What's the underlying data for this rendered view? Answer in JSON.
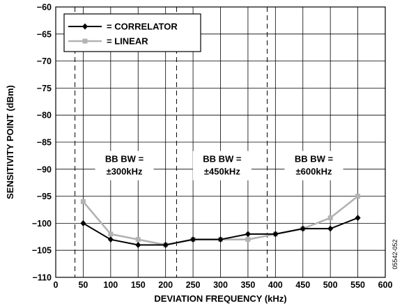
{
  "figure_id": "05542-052",
  "chart_data": {
    "type": "line",
    "title": "",
    "xlabel": "DEVIATION FREQUENCY (kHz)",
    "ylabel": "SENSITIVITY POINT (dBm)",
    "xlim": [
      0,
      600
    ],
    "ylim": [
      -110,
      -60
    ],
    "x_ticks": [
      0,
      50,
      100,
      150,
      200,
      250,
      300,
      350,
      400,
      450,
      500,
      550,
      600
    ],
    "y_ticks": [
      -60,
      -65,
      -70,
      -75,
      -80,
      -85,
      -90,
      -95,
      -100,
      -105,
      -110
    ],
    "grid": true,
    "legend_position": "top-left",
    "series": [
      {
        "name": "= CORRELATOR",
        "color": "#000000",
        "marker": "diamond",
        "x": [
          50,
          100,
          150,
          200,
          250,
          300,
          350,
          400,
          450,
          500,
          550
        ],
        "y": [
          -100,
          -103,
          -104,
          -104,
          -103,
          -103,
          -102,
          -102,
          -101,
          -101,
          -99
        ]
      },
      {
        "name": "= LINEAR",
        "color": "#b3b3b3",
        "marker": "square",
        "x": [
          50,
          100,
          150,
          200,
          250,
          300,
          350,
          400,
          450,
          500,
          550
        ],
        "y": [
          -96,
          -102,
          -103,
          -104,
          -103,
          -103,
          -103,
          -102,
          -101,
          -99,
          -95
        ]
      }
    ],
    "reference_lines": [
      {
        "x": 35,
        "style": "dashed"
      },
      {
        "x": 220,
        "style": "dashed"
      },
      {
        "x": 385,
        "style": "dashed"
      }
    ],
    "annotations": [
      {
        "line1": "BB BW =",
        "line2": "±300kHz",
        "x": 125,
        "y": -88.7
      },
      {
        "line1": "BB BW =",
        "line2": "±450kHz",
        "x": 303,
        "y": -88.7
      },
      {
        "line1": "BB BW =",
        "line2": "±600kHz",
        "x": 470,
        "y": -88.7
      }
    ]
  }
}
